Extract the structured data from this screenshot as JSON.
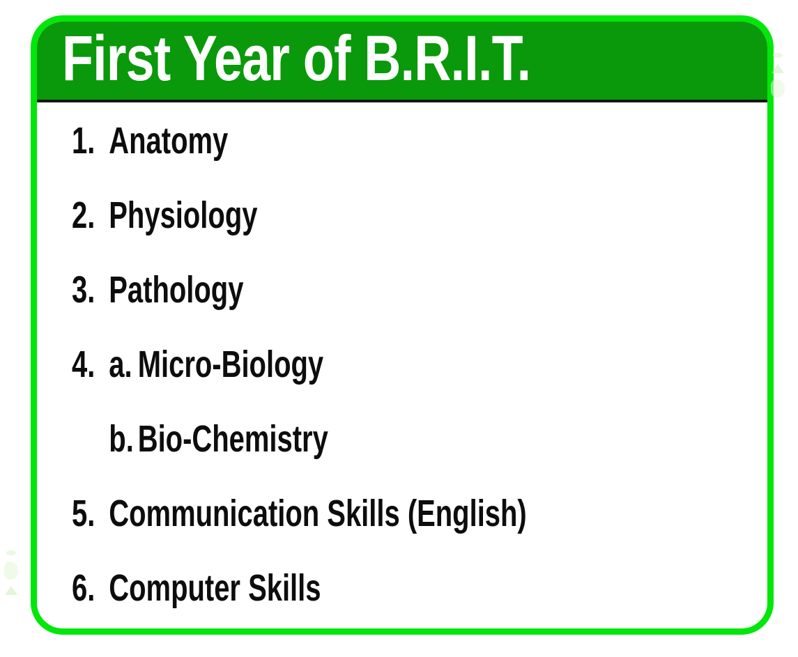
{
  "panel": {
    "border_color": "#00e70a",
    "header": {
      "title": "First Year of B.R.I.T.",
      "background_color": "#0a990a",
      "text_color": "#ffffff",
      "divider_color": "#141414"
    },
    "list": {
      "text_color": "#0d0d0d",
      "items": [
        {
          "number": "1.",
          "sub": "",
          "label": "Anatomy"
        },
        {
          "number": "2.",
          "sub": "",
          "label": "Physiology"
        },
        {
          "number": "3.",
          "sub": "",
          "label": "Pathology"
        },
        {
          "number": "4.",
          "sub": "a.",
          "label": "Micro-Biology"
        },
        {
          "number": "",
          "sub": "b.",
          "label": "Bio-Chemistry"
        },
        {
          "number": "5.",
          "sub": "",
          "label": "Communication Skills (English)"
        },
        {
          "number": "6.",
          "sub": "",
          "label": "Computer Skills"
        }
      ]
    }
  },
  "artifacts": {
    "top_right": "faint-green-smudge",
    "bottom_left": "faint-green-smudge"
  }
}
